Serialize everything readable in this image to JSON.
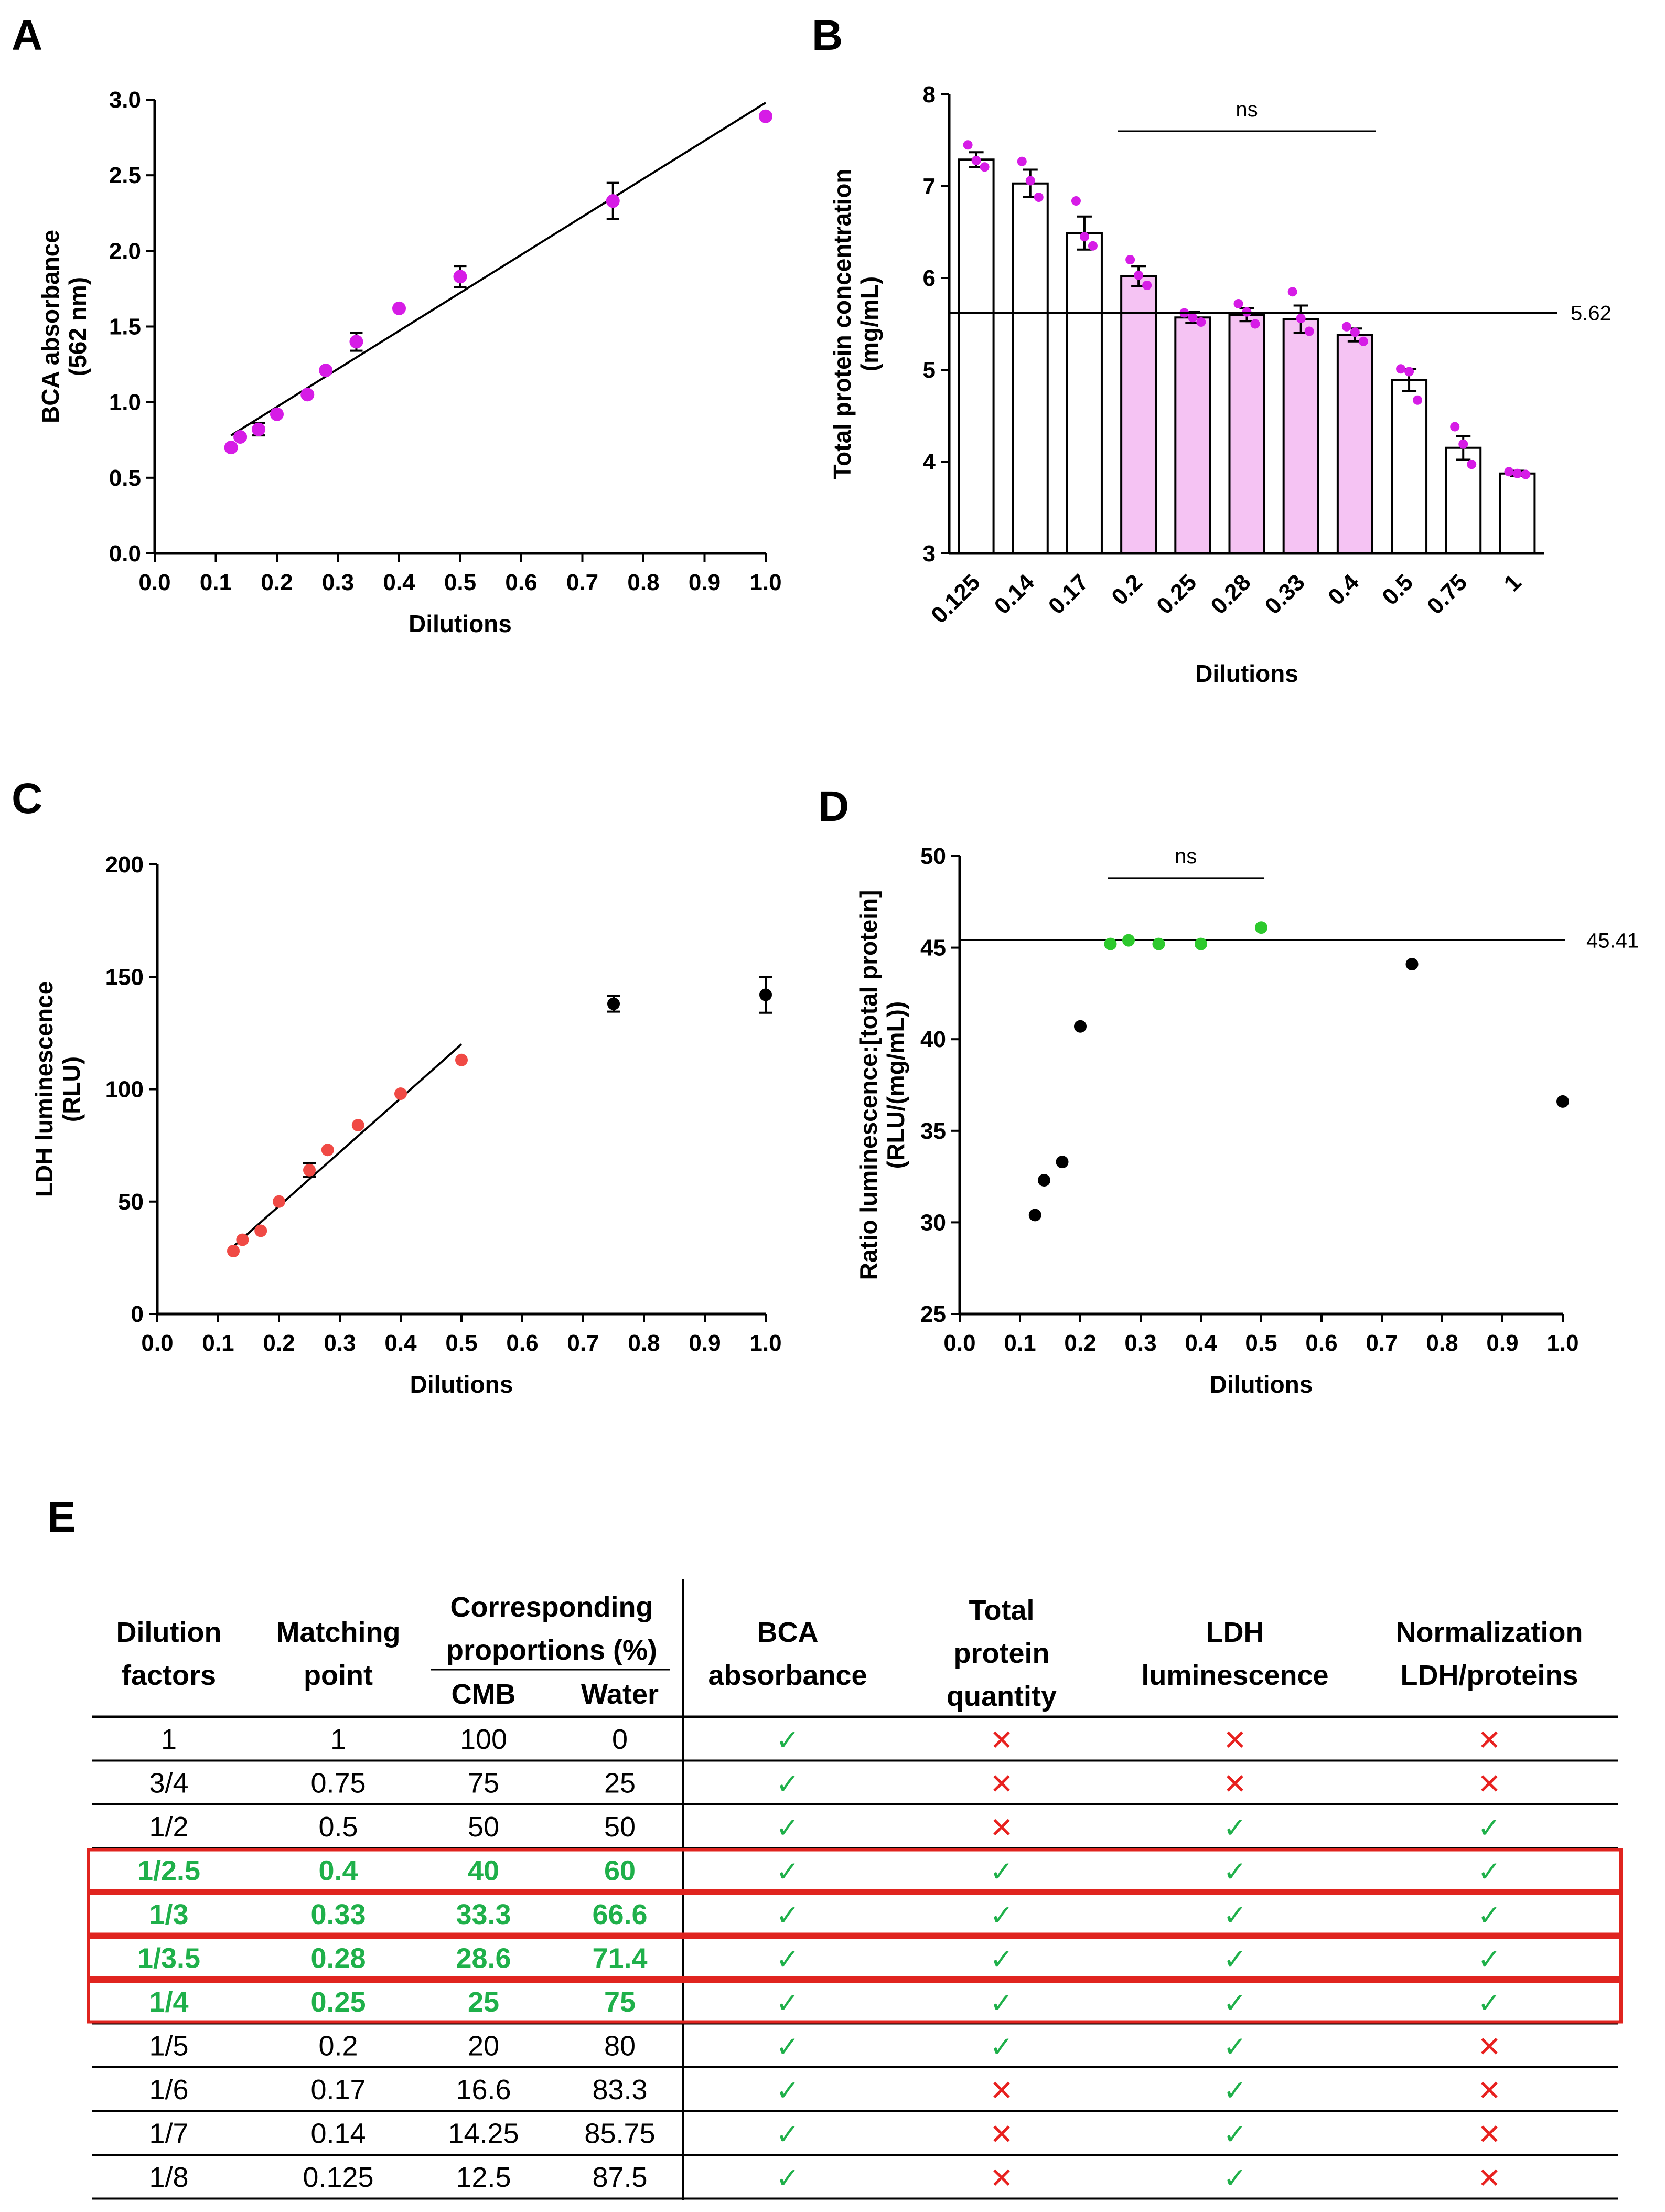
{
  "colors": {
    "magenta": "#d61ce6",
    "pink_fill": "#f5c3f3",
    "red": "#f04a45",
    "green": "#2dc92d",
    "black": "#000000",
    "table_green": "#1fb04a",
    "table_red": "#e8211f",
    "highlight_box": "#e0241f"
  },
  "chart_data": [
    {
      "panel": "A",
      "type": "scatter",
      "xlabel": "Dilutions",
      "ylabel": "BCA absorbance (562 nm)",
      "ylabel_lines": [
        "BCA absorbance",
        "(562 nm)"
      ],
      "xlim": [
        0,
        1.0
      ],
      "ylim": [
        0,
        3.0
      ],
      "xticks": [
        0.0,
        0.1,
        0.2,
        0.3,
        0.4,
        0.5,
        0.6,
        0.7,
        0.8,
        0.9,
        1.0
      ],
      "xtick_labels": [
        "0.0",
        "0.1",
        "0.2",
        "0.3",
        "0.4",
        "0.5",
        "0.6",
        "0.7",
        "0.8",
        "0.9",
        "1.0"
      ],
      "yticks": [
        0.0,
        0.5,
        1.0,
        1.5,
        2.0,
        2.5,
        3.0
      ],
      "ytick_labels": [
        "0.0",
        "0.5",
        "1.0",
        "1.5",
        "2.0",
        "2.5",
        "3.0"
      ],
      "point_color": "#d61ce6",
      "points": [
        {
          "x": 0.125,
          "y": 0.7,
          "err": 0.0
        },
        {
          "x": 0.14,
          "y": 0.77,
          "err": 0.0
        },
        {
          "x": 0.17,
          "y": 0.82,
          "err": 0.04
        },
        {
          "x": 0.2,
          "y": 0.92,
          "err": 0.0
        },
        {
          "x": 0.25,
          "y": 1.05,
          "err": 0.0
        },
        {
          "x": 0.28,
          "y": 1.21,
          "err": 0.0
        },
        {
          "x": 0.33,
          "y": 1.4,
          "err": 0.06
        },
        {
          "x": 0.4,
          "y": 1.62,
          "err": 0.0
        },
        {
          "x": 0.5,
          "y": 1.83,
          "err": 0.07
        },
        {
          "x": 0.75,
          "y": 2.33,
          "err": 0.12
        },
        {
          "x": 1.0,
          "y": 2.89,
          "err": 0.0
        }
      ],
      "fit_line": {
        "x": [
          0.125,
          1.0
        ],
        "y": [
          0.78,
          2.98
        ]
      }
    },
    {
      "panel": "B",
      "type": "bar",
      "xlabel": "Dilutions",
      "ylabel": "Total protein concentration (mg/mL)",
      "ylabel_lines": [
        "Total protein concentration",
        "(mg/mL)"
      ],
      "ylim": [
        3,
        8
      ],
      "yticks": [
        3,
        4,
        5,
        6,
        7,
        8
      ],
      "ytick_labels": [
        "3",
        "4",
        "5",
        "6",
        "7",
        "8"
      ],
      "categories": [
        "0.125",
        "0.14",
        "0.17",
        "0.2",
        "0.25",
        "0.28",
        "0.33",
        "0.4",
        "0.5",
        "0.75",
        "1"
      ],
      "values": [
        7.29,
        7.03,
        6.49,
        6.02,
        5.57,
        5.6,
        5.55,
        5.38,
        4.89,
        4.15,
        3.87
      ],
      "errors": [
        0.08,
        0.15,
        0.18,
        0.11,
        0.06,
        0.07,
        0.15,
        0.07,
        0.12,
        0.13,
        0.03
      ],
      "replicates": [
        [
          7.45,
          7.28,
          7.21
        ],
        [
          7.27,
          7.06,
          6.88
        ],
        [
          6.84,
          6.45,
          6.35
        ],
        [
          6.2,
          6.03,
          5.92
        ],
        [
          5.62,
          5.57,
          5.52
        ],
        [
          5.72,
          5.63,
          5.5
        ],
        [
          5.85,
          5.56,
          5.42
        ],
        [
          5.47,
          5.41,
          5.31
        ],
        [
          5.01,
          4.98,
          4.67
        ],
        [
          4.38,
          4.19,
          3.97
        ],
        [
          3.89,
          3.87,
          3.86
        ]
      ],
      "highlighted": [
        "0.2",
        "0.25",
        "0.28",
        "0.33",
        "0.4"
      ],
      "reference_line": {
        "y": 5.62,
        "label": "5.62"
      },
      "significance": {
        "label": "ns",
        "from": "0.2",
        "to": "0.4",
        "y": 7.6
      }
    },
    {
      "panel": "C",
      "type": "scatter",
      "xlabel": "Dilutions",
      "ylabel": "LDH luminescence (RLU)",
      "ylabel_lines": [
        "LDH luminescence",
        "(RLU)"
      ],
      "xlim": [
        0,
        1.0
      ],
      "ylim": [
        0,
        200
      ],
      "xticks": [
        0.0,
        0.1,
        0.2,
        0.3,
        0.4,
        0.5,
        0.6,
        0.7,
        0.8,
        0.9,
        1.0
      ],
      "xtick_labels": [
        "0.0",
        "0.1",
        "0.2",
        "0.3",
        "0.4",
        "0.5",
        "0.6",
        "0.7",
        "0.8",
        "0.9",
        "1.0"
      ],
      "yticks": [
        0,
        50,
        100,
        150,
        200
      ],
      "ytick_labels": [
        "0",
        "50",
        "100",
        "150",
        "200"
      ],
      "points": [
        {
          "x": 0.125,
          "y": 28,
          "err": 0,
          "color": "#f04a45"
        },
        {
          "x": 0.14,
          "y": 33,
          "err": 0,
          "color": "#f04a45"
        },
        {
          "x": 0.17,
          "y": 37,
          "err": 0,
          "color": "#f04a45"
        },
        {
          "x": 0.2,
          "y": 50,
          "err": 0,
          "color": "#f04a45"
        },
        {
          "x": 0.25,
          "y": 64,
          "err": 3,
          "color": "#f04a45"
        },
        {
          "x": 0.28,
          "y": 73,
          "err": 0,
          "color": "#f04a45"
        },
        {
          "x": 0.33,
          "y": 84,
          "err": 0,
          "color": "#f04a45"
        },
        {
          "x": 0.4,
          "y": 98,
          "err": 0,
          "color": "#f04a45"
        },
        {
          "x": 0.5,
          "y": 113,
          "err": 0,
          "color": "#f04a45"
        },
        {
          "x": 0.75,
          "y": 138,
          "err": 3.5,
          "color": "#000000"
        },
        {
          "x": 1.0,
          "y": 142,
          "err": 8,
          "color": "#000000"
        }
      ],
      "fit_line": {
        "x": [
          0.125,
          0.5
        ],
        "y": [
          30,
          120
        ]
      }
    },
    {
      "panel": "D",
      "type": "scatter",
      "xlabel": "Dilutions",
      "ylabel": "Ratio luminescence:[total protein] (RLU/(mg/mL))",
      "ylabel_lines": [
        "Ratio luminescence:[total protein]",
        "(RLU/(mg/mL))"
      ],
      "xlim": [
        0,
        1.0
      ],
      "ylim": [
        25,
        50
      ],
      "xticks": [
        0.0,
        0.1,
        0.2,
        0.3,
        0.4,
        0.5,
        0.6,
        0.7,
        0.8,
        0.9,
        1.0
      ],
      "xtick_labels": [
        "0.0",
        "0.1",
        "0.2",
        "0.3",
        "0.4",
        "0.5",
        "0.6",
        "0.7",
        "0.8",
        "0.9",
        "1.0"
      ],
      "yticks": [
        25,
        30,
        35,
        40,
        45,
        50
      ],
      "ytick_labels": [
        "25",
        "30",
        "35",
        "40",
        "45",
        "50"
      ],
      "points": [
        {
          "x": 0.125,
          "y": 30.4,
          "color": "#000000"
        },
        {
          "x": 0.14,
          "y": 32.3,
          "color": "#000000"
        },
        {
          "x": 0.17,
          "y": 33.3,
          "color": "#000000"
        },
        {
          "x": 0.2,
          "y": 40.7,
          "color": "#000000"
        },
        {
          "x": 0.25,
          "y": 45.2,
          "color": "#2dc92d"
        },
        {
          "x": 0.28,
          "y": 45.4,
          "color": "#2dc92d"
        },
        {
          "x": 0.33,
          "y": 45.2,
          "color": "#2dc92d"
        },
        {
          "x": 0.4,
          "y": 45.2,
          "color": "#2dc92d"
        },
        {
          "x": 0.5,
          "y": 46.1,
          "color": "#2dc92d"
        },
        {
          "x": 0.75,
          "y": 44.1,
          "color": "#000000"
        },
        {
          "x": 1.0,
          "y": 36.6,
          "color": "#000000"
        }
      ],
      "reference_line": {
        "y": 45.41,
        "label": "45.41"
      },
      "significance": {
        "label": "ns",
        "from": 0.25,
        "to": 0.5,
        "y": 48.8
      }
    },
    {
      "panel": "E",
      "type": "table",
      "headers": {
        "dilution": [
          "Dilution",
          "factors"
        ],
        "matching": [
          "Matching",
          "point"
        ],
        "proportions": [
          "Corresponding",
          "proportions (%)"
        ],
        "cmb": "CMB",
        "water": "Water",
        "bca": [
          "BCA",
          "absorbance"
        ],
        "protein": [
          "Total",
          "protein",
          "quantity"
        ],
        "ldh": [
          "LDH",
          "luminescence"
        ],
        "norm": [
          "Normalization",
          "LDH/proteins"
        ]
      },
      "rows": [
        {
          "dilution": "1",
          "matching": "1",
          "cmb": "100",
          "water": "0",
          "bca": true,
          "protein": false,
          "ldh": false,
          "norm": false,
          "highlight": false
        },
        {
          "dilution": "3/4",
          "matching": "0.75",
          "cmb": "75",
          "water": "25",
          "bca": true,
          "protein": false,
          "ldh": false,
          "norm": false,
          "highlight": false
        },
        {
          "dilution": "1/2",
          "matching": "0.5",
          "cmb": "50",
          "water": "50",
          "bca": true,
          "protein": false,
          "ldh": true,
          "norm": true,
          "highlight": false
        },
        {
          "dilution": "1/2.5",
          "matching": "0.4",
          "cmb": "40",
          "water": "60",
          "bca": true,
          "protein": true,
          "ldh": true,
          "norm": true,
          "highlight": true
        },
        {
          "dilution": "1/3",
          "matching": "0.33",
          "cmb": "33.3",
          "water": "66.6",
          "bca": true,
          "protein": true,
          "ldh": true,
          "norm": true,
          "highlight": true
        },
        {
          "dilution": "1/3.5",
          "matching": "0.28",
          "cmb": "28.6",
          "water": "71.4",
          "bca": true,
          "protein": true,
          "ldh": true,
          "norm": true,
          "highlight": true
        },
        {
          "dilution": "1/4",
          "matching": "0.25",
          "cmb": "25",
          "water": "75",
          "bca": true,
          "protein": true,
          "ldh": true,
          "norm": true,
          "highlight": true
        },
        {
          "dilution": "1/5",
          "matching": "0.2",
          "cmb": "20",
          "water": "80",
          "bca": true,
          "protein": true,
          "ldh": true,
          "norm": false,
          "highlight": false
        },
        {
          "dilution": "1/6",
          "matching": "0.17",
          "cmb": "16.6",
          "water": "83.3",
          "bca": true,
          "protein": false,
          "ldh": true,
          "norm": false,
          "highlight": false
        },
        {
          "dilution": "1/7",
          "matching": "0.14",
          "cmb": "14.25",
          "water": "85.75",
          "bca": true,
          "protein": false,
          "ldh": true,
          "norm": false,
          "highlight": false
        },
        {
          "dilution": "1/8",
          "matching": "0.125",
          "cmb": "12.5",
          "water": "87.5",
          "bca": true,
          "protein": false,
          "ldh": true,
          "norm": false,
          "highlight": false
        }
      ],
      "check_symbol": "✓",
      "cross_symbol": "✕"
    }
  ]
}
